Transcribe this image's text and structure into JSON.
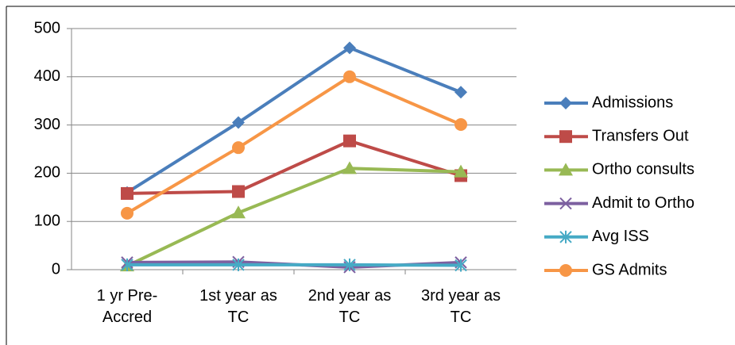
{
  "chart_data": {
    "type": "line",
    "categories": [
      "1 yr Pre-Accred",
      "1st year as TC",
      "2nd year as TC",
      "3rd year as TC"
    ],
    "series": [
      {
        "name": "Admissions",
        "color": "#4a7ebb",
        "marker": "diamond",
        "values": [
          160,
          305,
          460,
          368
        ]
      },
      {
        "name": "Transfers Out",
        "color": "#be4b48",
        "marker": "square",
        "values": [
          158,
          162,
          267,
          195
        ]
      },
      {
        "name": "Ortho consults",
        "color": "#98b954",
        "marker": "triangle",
        "values": [
          8,
          118,
          210,
          203
        ]
      },
      {
        "name": "Admit to Ortho",
        "color": "#7d60a0",
        "marker": "x",
        "values": [
          15,
          16,
          5,
          15
        ]
      },
      {
        "name": "Avg ISS",
        "color": "#46aac5",
        "marker": "star",
        "values": [
          10,
          10,
          10,
          9
        ]
      },
      {
        "name": "GS Admits",
        "color": "#f79646",
        "marker": "circle",
        "values": [
          117,
          253,
          400,
          301
        ]
      }
    ],
    "ylim": [
      0,
      500
    ],
    "yticks": [
      0,
      100,
      200,
      300,
      400,
      500
    ],
    "grid": true,
    "legend": "right"
  }
}
